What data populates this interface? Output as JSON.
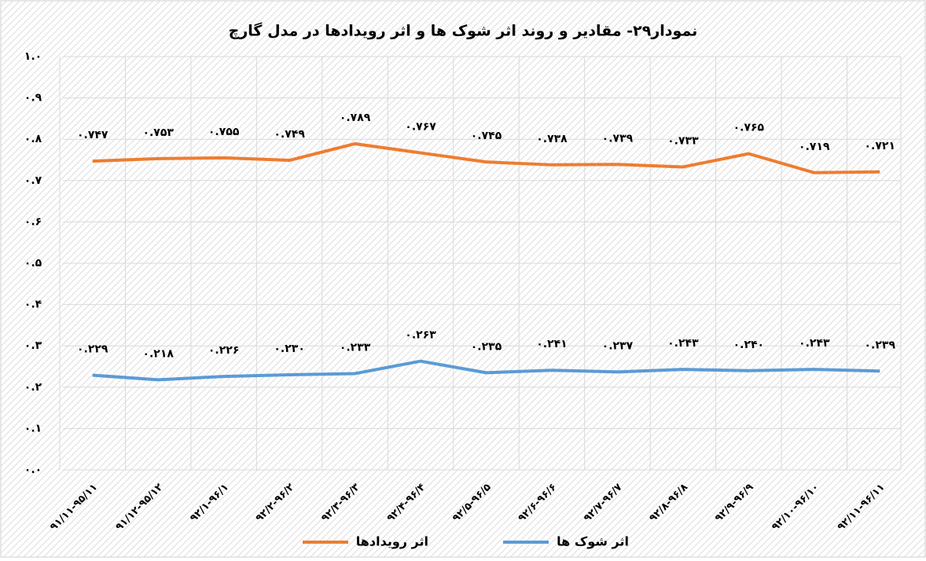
{
  "chart_data": {
    "type": "line",
    "title": "نمودار۲۹- مقادیر و روند اثر شوک ها و اثر رویدادها در مدل گارچ",
    "categories": [
      "۹۱/۱۱-۹۵/۱۱",
      "۹۱/۱۲-۹۵/۱۲",
      "۹۲/۱-۹۶/۱",
      "۹۲/۲-۹۶/۲",
      "۹۲/۳-۹۶/۳",
      "۹۲/۴-۹۶/۴",
      "۹۲/۵-۹۶/۵",
      "۹۲/۶-۹۶/۶",
      "۹۲/۷-۹۶/۷",
      "۹۲/۸-۹۶/۸",
      "۹۲/۹-۹۶/۹",
      "۹۲/۱۰-۹۶/۱۰",
      "۹۲/۱۱-۹۶/۱۱"
    ],
    "series": [
      {
        "name": "اثر رویدادها",
        "color": "#ed7d31",
        "values": [
          0.747,
          0.753,
          0.755,
          0.749,
          0.789,
          0.767,
          0.745,
          0.738,
          0.739,
          0.733,
          0.765,
          0.719,
          0.721
        ],
        "value_labels": [
          "۰.۷۴۷",
          "۰.۷۵۳",
          "۰.۷۵۵",
          "۰.۷۴۹",
          "۰.۷۸۹",
          "۰.۷۶۷",
          "۰.۷۴۵",
          "۰.۷۳۸",
          "۰.۷۳۹",
          "۰.۷۳۳",
          "۰.۷۶۵",
          "۰.۷۱۹",
          "۰.۷۲۱"
        ]
      },
      {
        "name": "اثر شوک ها",
        "color": "#5b9bd5",
        "values": [
          0.229,
          0.218,
          0.226,
          0.23,
          0.233,
          0.263,
          0.235,
          0.241,
          0.237,
          0.243,
          0.24,
          0.243,
          0.239
        ],
        "value_labels": [
          "۰.۲۲۹",
          "۰.۲۱۸",
          "۰.۲۲۶",
          "۰.۲۳۰",
          "۰.۲۳۳",
          "۰.۲۶۳",
          "۰.۲۳۵",
          "۰.۲۴۱",
          "۰.۲۳۷",
          "۰.۲۴۳",
          "۰.۲۴۰",
          "۰.۲۴۳",
          "۰.۲۳۹"
        ]
      }
    ],
    "ylim": [
      0,
      1
    ],
    "yticks": [
      {
        "value": 0,
        "label": "۰.۰"
      },
      {
        "value": 0.1,
        "label": "۰.۱"
      },
      {
        "value": 0.2,
        "label": "۰.۲"
      },
      {
        "value": 0.3,
        "label": "۰.۳"
      },
      {
        "value": 0.4,
        "label": "۰.۴"
      },
      {
        "value": 0.5,
        "label": "۰.۵"
      },
      {
        "value": 0.6,
        "label": "۰.۶"
      },
      {
        "value": 0.7,
        "label": "۰.۷"
      },
      {
        "value": 0.8,
        "label": "۰.۸"
      },
      {
        "value": 0.9,
        "label": "۰.۹"
      },
      {
        "value": 1,
        "label": "۱.۰"
      }
    ],
    "grid": true
  }
}
